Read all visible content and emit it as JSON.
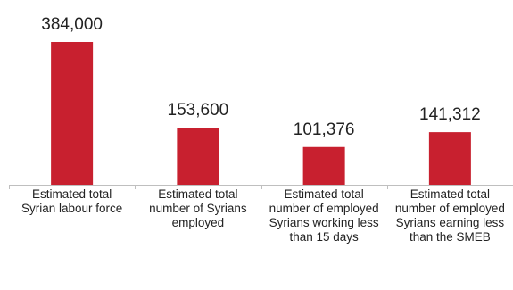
{
  "chart_data": {
    "type": "bar",
    "title": "",
    "xlabel": "",
    "ylabel": "",
    "categories": [
      "Estimated total Syrian labour force",
      "Estimated total number of Syrians employed",
      "Estimated total number of employed Syrians working less than 15 days",
      "Estimated total number of employed Syrians earning less than the SMEB"
    ],
    "values": [
      384000,
      153600,
      101376,
      141312
    ],
    "value_labels": [
      "384,000",
      "153,600",
      "101,376",
      "141,312"
    ],
    "ylim": [
      0,
      384000
    ],
    "grid": false,
    "legend": "none",
    "bar_color": "#c8202f",
    "axis_color": "#bfbfbf"
  }
}
